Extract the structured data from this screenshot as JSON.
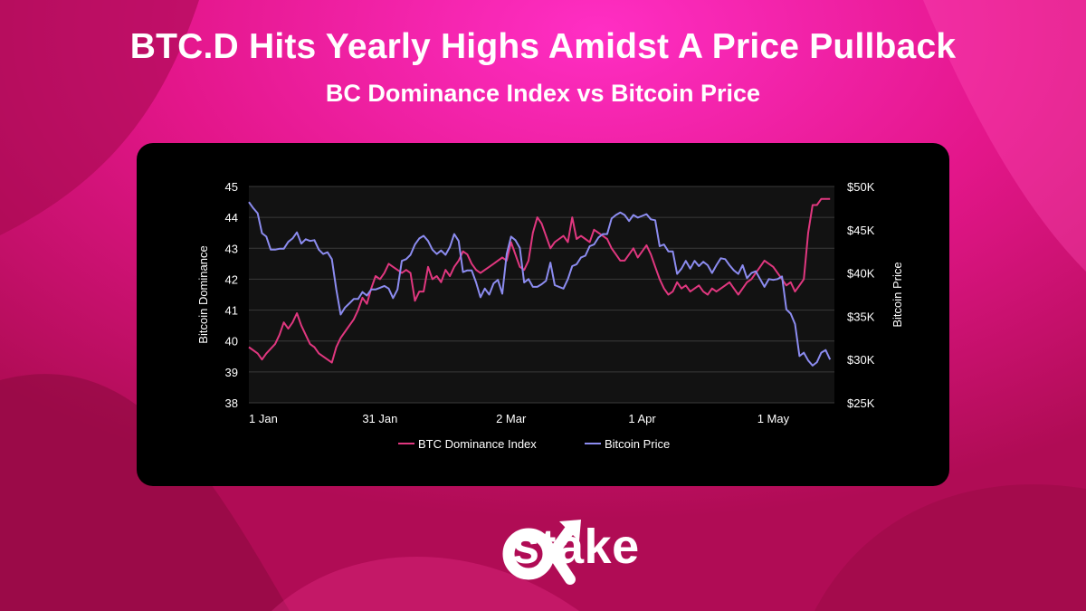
{
  "header": {
    "title": "BTC.D Hits Yearly Highs Amidst A Price Pullback",
    "subtitle": "BC Dominance Index vs Bitcoin Price"
  },
  "brand": {
    "wordmark": "stake",
    "logo_icon": "alpha-arrow-icon"
  },
  "colors": {
    "dominance": "#e0377f",
    "price": "#8c8cf0",
    "panel": "#000000",
    "plot": "#121212",
    "grid": "#3a3a3a",
    "text": "#ffffff"
  },
  "chart_data": {
    "type": "line",
    "x_ticks": [
      "1 Jan",
      "31 Jan",
      "2 Mar",
      "1 Apr",
      "1 May"
    ],
    "x_tick_days": [
      0,
      30,
      60,
      90,
      120
    ],
    "x_range_days": [
      0,
      134
    ],
    "y_left": {
      "label": "Bitcoin Dominance",
      "range": [
        38,
        45
      ],
      "ticks": [
        "38",
        "39",
        "40",
        "41",
        "42",
        "43",
        "44",
        "45"
      ]
    },
    "y_right": {
      "label": "Bitcoin Price",
      "range": [
        25000,
        50000
      ],
      "ticks": [
        "$25K",
        "$30K",
        "$35K",
        "$40K",
        "$45K",
        "$50K"
      ]
    },
    "grid": true,
    "legend_position": "bottom",
    "series": [
      {
        "name": "BTC Dominance Index",
        "axis": "left",
        "points": [
          [
            0,
            39.8
          ],
          [
            2,
            39.6
          ],
          [
            3,
            39.4
          ],
          [
            4,
            39.6
          ],
          [
            6,
            39.9
          ],
          [
            7,
            40.2
          ],
          [
            8,
            40.6
          ],
          [
            9,
            40.4
          ],
          [
            10,
            40.6
          ],
          [
            11,
            40.9
          ],
          [
            12,
            40.5
          ],
          [
            13,
            40.2
          ],
          [
            14,
            39.9
          ],
          [
            15,
            39.8
          ],
          [
            16,
            39.6
          ],
          [
            17,
            39.5
          ],
          [
            18,
            39.4
          ],
          [
            19,
            39.3
          ],
          [
            20,
            39.8
          ],
          [
            21,
            40.1
          ],
          [
            22,
            40.3
          ],
          [
            23,
            40.5
          ],
          [
            24,
            40.7
          ],
          [
            25,
            41.0
          ],
          [
            26,
            41.4
          ],
          [
            27,
            41.2
          ],
          [
            28,
            41.7
          ],
          [
            29,
            42.1
          ],
          [
            30,
            42.0
          ],
          [
            31,
            42.2
          ],
          [
            32,
            42.5
          ],
          [
            33,
            42.4
          ],
          [
            34,
            42.3
          ],
          [
            35,
            42.2
          ],
          [
            36,
            42.3
          ],
          [
            37,
            42.2
          ],
          [
            38,
            41.3
          ],
          [
            39,
            41.6
          ],
          [
            40,
            41.6
          ],
          [
            41,
            42.4
          ],
          [
            42,
            42.0
          ],
          [
            43,
            42.1
          ],
          [
            44,
            41.9
          ],
          [
            45,
            42.3
          ],
          [
            46,
            42.1
          ],
          [
            47,
            42.4
          ],
          [
            48,
            42.6
          ],
          [
            49,
            42.9
          ],
          [
            50,
            42.8
          ],
          [
            51,
            42.5
          ],
          [
            52,
            42.3
          ],
          [
            53,
            42.2
          ],
          [
            54,
            42.3
          ],
          [
            55,
            42.4
          ],
          [
            56,
            42.5
          ],
          [
            57,
            42.6
          ],
          [
            58,
            42.7
          ],
          [
            59,
            42.6
          ],
          [
            60,
            43.2
          ],
          [
            61,
            42.8
          ],
          [
            62,
            42.4
          ],
          [
            63,
            42.3
          ],
          [
            64,
            42.6
          ],
          [
            65,
            43.5
          ],
          [
            66,
            44.0
          ],
          [
            67,
            43.8
          ],
          [
            68,
            43.4
          ],
          [
            69,
            43.0
          ],
          [
            70,
            43.2
          ],
          [
            71,
            43.3
          ],
          [
            72,
            43.4
          ],
          [
            73,
            43.2
          ],
          [
            74,
            44.0
          ],
          [
            75,
            43.3
          ],
          [
            76,
            43.4
          ],
          [
            77,
            43.3
          ],
          [
            78,
            43.2
          ],
          [
            79,
            43.6
          ],
          [
            80,
            43.5
          ],
          [
            81,
            43.4
          ],
          [
            82,
            43.3
          ],
          [
            83,
            43.0
          ],
          [
            84,
            42.8
          ],
          [
            85,
            42.6
          ],
          [
            86,
            42.6
          ],
          [
            87,
            42.8
          ],
          [
            88,
            43.0
          ],
          [
            89,
            42.7
          ],
          [
            90,
            42.9
          ],
          [
            91,
            43.1
          ],
          [
            92,
            42.8
          ],
          [
            93,
            42.4
          ],
          [
            94,
            42.0
          ],
          [
            95,
            41.7
          ],
          [
            96,
            41.5
          ],
          [
            97,
            41.6
          ],
          [
            98,
            41.9
          ],
          [
            99,
            41.7
          ],
          [
            100,
            41.8
          ],
          [
            101,
            41.6
          ],
          [
            102,
            41.7
          ],
          [
            103,
            41.8
          ],
          [
            104,
            41.6
          ],
          [
            105,
            41.5
          ],
          [
            106,
            41.7
          ],
          [
            107,
            41.6
          ],
          [
            108,
            41.7
          ],
          [
            109,
            41.8
          ],
          [
            110,
            41.9
          ],
          [
            111,
            41.7
          ],
          [
            112,
            41.5
          ],
          [
            113,
            41.7
          ],
          [
            114,
            41.9
          ],
          [
            115,
            42.0
          ],
          [
            116,
            42.2
          ],
          [
            117,
            42.4
          ],
          [
            118,
            42.6
          ],
          [
            119,
            42.5
          ],
          [
            120,
            42.4
          ],
          [
            121,
            42.2
          ],
          [
            122,
            42.0
          ],
          [
            123,
            41.8
          ],
          [
            124,
            41.9
          ],
          [
            125,
            41.6
          ],
          [
            126,
            41.8
          ],
          [
            127,
            42.0
          ],
          [
            128,
            43.5
          ],
          [
            129,
            44.4
          ],
          [
            130,
            44.4
          ],
          [
            131,
            44.6
          ],
          [
            132,
            44.6
          ],
          [
            133,
            44.6
          ]
        ]
      },
      {
        "name": "Bitcoin Price",
        "axis": "right",
        "points": [
          [
            0,
            48200
          ],
          [
            1,
            47500
          ],
          [
            2,
            46900
          ],
          [
            3,
            44600
          ],
          [
            4,
            44200
          ],
          [
            5,
            42700
          ],
          [
            6,
            42700
          ],
          [
            7,
            42800
          ],
          [
            8,
            42800
          ],
          [
            9,
            43600
          ],
          [
            10,
            44000
          ],
          [
            11,
            44700
          ],
          [
            12,
            43400
          ],
          [
            13,
            43900
          ],
          [
            14,
            43700
          ],
          [
            15,
            43800
          ],
          [
            16,
            42700
          ],
          [
            17,
            42200
          ],
          [
            18,
            42400
          ],
          [
            19,
            41600
          ],
          [
            20,
            38100
          ],
          [
            21,
            35200
          ],
          [
            22,
            36000
          ],
          [
            23,
            36500
          ],
          [
            24,
            37000
          ],
          [
            25,
            37000
          ],
          [
            26,
            37800
          ],
          [
            27,
            37400
          ],
          [
            28,
            38100
          ],
          [
            29,
            38100
          ],
          [
            30,
            38300
          ],
          [
            31,
            38500
          ],
          [
            32,
            38200
          ],
          [
            33,
            37100
          ],
          [
            34,
            38100
          ],
          [
            35,
            41400
          ],
          [
            36,
            41600
          ],
          [
            37,
            42100
          ],
          [
            38,
            43300
          ],
          [
            39,
            44000
          ],
          [
            40,
            44300
          ],
          [
            41,
            43700
          ],
          [
            42,
            42700
          ],
          [
            43,
            42200
          ],
          [
            44,
            42600
          ],
          [
            45,
            42100
          ],
          [
            46,
            43000
          ],
          [
            47,
            44500
          ],
          [
            48,
            43700
          ],
          [
            49,
            40100
          ],
          [
            50,
            40300
          ],
          [
            51,
            40300
          ],
          [
            52,
            38900
          ],
          [
            53,
            37200
          ],
          [
            54,
            38200
          ],
          [
            55,
            37500
          ],
          [
            56,
            38800
          ],
          [
            57,
            39200
          ],
          [
            58,
            37600
          ],
          [
            59,
            42200
          ],
          [
            60,
            44200
          ],
          [
            61,
            43800
          ],
          [
            62,
            42900
          ],
          [
            63,
            38900
          ],
          [
            64,
            39300
          ],
          [
            65,
            38400
          ],
          [
            66,
            38400
          ],
          [
            67,
            38700
          ],
          [
            68,
            39100
          ],
          [
            69,
            41200
          ],
          [
            70,
            38600
          ],
          [
            71,
            38400
          ],
          [
            72,
            38200
          ],
          [
            73,
            39300
          ],
          [
            74,
            40800
          ],
          [
            75,
            41000
          ],
          [
            76,
            41800
          ],
          [
            77,
            42000
          ],
          [
            78,
            43100
          ],
          [
            79,
            43300
          ],
          [
            80,
            44100
          ],
          [
            81,
            44500
          ],
          [
            82,
            44500
          ],
          [
            83,
            46300
          ],
          [
            84,
            46700
          ],
          [
            85,
            47000
          ],
          [
            86,
            46700
          ],
          [
            87,
            46000
          ],
          [
            88,
            46700
          ],
          [
            89,
            46400
          ],
          [
            90,
            46600
          ],
          [
            91,
            46800
          ],
          [
            92,
            46200
          ],
          [
            93,
            46100
          ],
          [
            94,
            43100
          ],
          [
            95,
            43300
          ],
          [
            96,
            42500
          ],
          [
            97,
            42500
          ],
          [
            98,
            39900
          ],
          [
            99,
            40500
          ],
          [
            100,
            41400
          ],
          [
            101,
            40500
          ],
          [
            102,
            41400
          ],
          [
            103,
            40800
          ],
          [
            104,
            41300
          ],
          [
            105,
            40900
          ],
          [
            106,
            40000
          ],
          [
            107,
            40900
          ],
          [
            108,
            41700
          ],
          [
            109,
            41600
          ],
          [
            110,
            40900
          ],
          [
            111,
            40300
          ],
          [
            112,
            39900
          ],
          [
            113,
            40900
          ],
          [
            114,
            39400
          ],
          [
            115,
            40000
          ],
          [
            116,
            40200
          ],
          [
            117,
            39300
          ],
          [
            118,
            38400
          ],
          [
            119,
            39300
          ],
          [
            120,
            39200
          ],
          [
            121,
            39300
          ],
          [
            122,
            39600
          ],
          [
            123,
            35800
          ],
          [
            124,
            35300
          ],
          [
            125,
            34100
          ],
          [
            126,
            30400
          ],
          [
            127,
            30800
          ],
          [
            128,
            29900
          ],
          [
            129,
            29300
          ],
          [
            130,
            29700
          ],
          [
            131,
            30800
          ],
          [
            132,
            31100
          ],
          [
            133,
            30000
          ]
        ]
      }
    ]
  }
}
